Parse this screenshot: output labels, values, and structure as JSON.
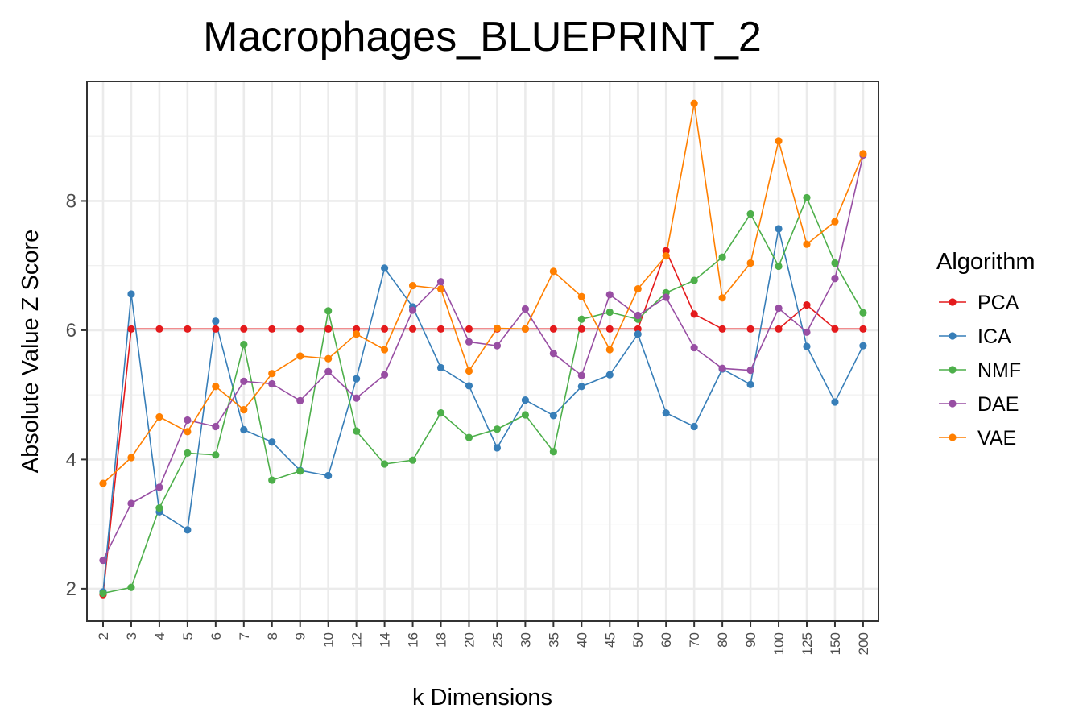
{
  "chart_data": {
    "type": "line",
    "title": "Macrophages_BLUEPRINT_2",
    "xlabel": "k Dimensions",
    "ylabel": "Absolute Value Z Score",
    "categories": [
      "2",
      "3",
      "4",
      "5",
      "6",
      "7",
      "8",
      "9",
      "10",
      "12",
      "14",
      "16",
      "18",
      "20",
      "25",
      "30",
      "35",
      "40",
      "45",
      "50",
      "60",
      "70",
      "80",
      "90",
      "100",
      "125",
      "150",
      "200"
    ],
    "ylim": [
      1.5,
      9.85
    ],
    "yticks": [
      "2",
      "4",
      "6",
      "8"
    ],
    "grid": true,
    "legend": {
      "title": "Algorithm",
      "position": "right"
    },
    "series": [
      {
        "name": "PCA",
        "color": "#E41A1C",
        "values": [
          1.91,
          6.02,
          6.02,
          6.02,
          6.02,
          6.02,
          6.02,
          6.02,
          6.02,
          6.02,
          6.02,
          6.02,
          6.02,
          6.02,
          6.02,
          6.02,
          6.02,
          6.02,
          6.02,
          6.02,
          7.23,
          6.25,
          6.02,
          6.02,
          6.02,
          6.39,
          6.02,
          6.02
        ]
      },
      {
        "name": "ICA",
        "color": "#377EB8",
        "values": [
          1.95,
          6.56,
          3.19,
          2.91,
          6.14,
          4.46,
          4.27,
          3.83,
          3.75,
          5.25,
          6.96,
          6.36,
          5.42,
          5.14,
          4.18,
          4.92,
          4.68,
          5.13,
          5.31,
          5.94,
          4.72,
          4.51,
          5.4,
          5.16,
          7.57,
          5.75,
          4.89,
          5.76
        ]
      },
      {
        "name": "NMF",
        "color": "#4DAF4A",
        "values": [
          1.93,
          2.02,
          3.25,
          4.1,
          4.07,
          5.78,
          3.68,
          3.82,
          6.3,
          4.44,
          3.93,
          3.99,
          4.72,
          4.34,
          4.47,
          4.69,
          4.12,
          6.17,
          6.28,
          6.17,
          6.58,
          6.77,
          7.13,
          7.8,
          6.99,
          8.05,
          7.04,
          6.27
        ]
      },
      {
        "name": "DAE",
        "color": "#984EA3",
        "values": [
          2.44,
          3.32,
          3.57,
          4.61,
          4.51,
          5.21,
          5.17,
          4.91,
          5.36,
          4.95,
          5.31,
          6.31,
          6.75,
          5.82,
          5.76,
          6.33,
          5.64,
          5.3,
          6.55,
          6.23,
          6.51,
          5.73,
          5.41,
          5.38,
          6.34,
          5.97,
          6.8,
          8.71
        ]
      },
      {
        "name": "VAE",
        "color": "#FF7F00",
        "values": [
          3.63,
          4.03,
          4.66,
          4.43,
          5.13,
          4.77,
          5.33,
          5.6,
          5.56,
          5.94,
          5.7,
          6.69,
          6.64,
          5.37,
          6.03,
          6.02,
          6.91,
          6.52,
          5.7,
          6.64,
          7.15,
          9.51,
          6.5,
          7.04,
          8.93,
          7.33,
          7.68,
          8.73
        ]
      }
    ]
  }
}
